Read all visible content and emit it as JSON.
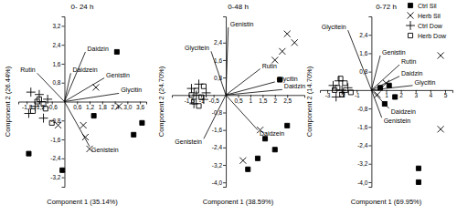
{
  "chart_data": [
    {
      "type": "scatter",
      "title": "0- 24 h",
      "x_label": "Component 1 (35.14%)",
      "y_label": "Component 2 (26.44%)",
      "xlim": [
        -2.2,
        3.9
      ],
      "ylim": [
        -3.6,
        3.6
      ],
      "xticks": [
        {
          "value": -1.8,
          "label": "-1,8"
        },
        {
          "value": -1.2,
          "label": "-1,2"
        },
        {
          "value": -0.6,
          "label": "-0,6"
        },
        {
          "value": 0.6,
          "label": "0,6"
        },
        {
          "value": 1.2,
          "label": "1,2"
        },
        {
          "value": 1.8,
          "label": "1,8"
        },
        {
          "value": 2.4,
          "label": "2,4"
        },
        {
          "value": 3.0,
          "label": "3,0"
        },
        {
          "value": 3.6,
          "label": "3,6"
        }
      ],
      "yticks": [
        {
          "value": 3.2,
          "label": "3,2"
        },
        {
          "value": 2.4,
          "label": "2,4"
        },
        {
          "value": 1.6,
          "label": "1,6"
        },
        {
          "value": 0.8,
          "label": "0,8"
        },
        {
          "value": -0.8,
          "label": "-0,8"
        },
        {
          "value": -1.6,
          "label": "-1,6"
        },
        {
          "value": -2.4,
          "label": "-2,4"
        },
        {
          "value": -3.2,
          "label": "-3,2"
        }
      ],
      "series": [
        {
          "name": "Ctrl Sil",
          "color": "#000000",
          "marker": "square",
          "x": [
            2.5,
            3.7,
            3.3,
            -0.1,
            -1.7,
            1.4
          ],
          "values": [
            2.1,
            -0.9,
            -1.4,
            -2.9,
            -2.2,
            -0.6
          ]
        },
        {
          "name": "Herb Sil",
          "color": "#000000",
          "marker": "x",
          "x": [
            1.5,
            1.0,
            1.2,
            -0.3,
            0.9,
            2.6
          ],
          "values": [
            0.6,
            -1.5,
            -2.0,
            -1.0,
            -1.0,
            -0.2
          ]
        },
        {
          "name": "Ctrl Dow",
          "color": "#000000",
          "marker": "plus",
          "x": [
            -1.6,
            -1.2,
            -1.4,
            -0.8,
            -1.0,
            -1.7
          ],
          "values": [
            0.4,
            0.3,
            -0.2,
            0.1,
            -0.7,
            -0.5
          ]
        },
        {
          "name": "Herb Dow",
          "color": "#000000",
          "marker": "square-open",
          "x": [
            -1.3,
            -1.0,
            -1.5,
            -0.9,
            -1.2,
            -0.6
          ],
          "values": [
            0.0,
            -0.1,
            -0.4,
            -0.3,
            0.1,
            -0.9
          ]
        }
      ],
      "vectors": [
        {
          "name": "Rutin",
          "x": -1.3,
          "y": 1.2
        },
        {
          "name": "Daidzin",
          "x": 1.0,
          "y": 2.1
        },
        {
          "name": "Daidzein",
          "x": 0.3,
          "y": 1.2
        },
        {
          "name": "Genistin",
          "x": 1.9,
          "y": 1.0
        },
        {
          "name": "Glycitin",
          "x": 2.6,
          "y": 0.35
        },
        {
          "name": "Genistein",
          "x": 1.2,
          "y": -1.9
        }
      ]
    },
    {
      "type": "scatter",
      "title": "0-48 h",
      "x_label": "Component 1 (38.59%)",
      "y_label": "Component 2 (24.70%)",
      "xlim": [
        -2.2,
        3.2
      ],
      "ylim": [
        -4.2,
        3.6
      ],
      "xticks": [
        {
          "value": -1.5,
          "label": "-1,5"
        },
        -1,
        {
          "value": -0.5,
          "label": "-0,5"
        },
        {
          "value": 0.5,
          "label": "0,5"
        },
        1,
        {
          "value": 1.5,
          "label": "1,5"
        },
        2,
        {
          "value": 2.5,
          "label": "2,5"
        }
      ],
      "yticks": [
        {
          "value": 2.4,
          "label": "2,4"
        },
        {
          "value": 1.6,
          "label": "1,6"
        },
        {
          "value": 0.8,
          "label": "0,8"
        },
        {
          "value": -0.8,
          "label": "-0,8"
        },
        {
          "value": -1.6,
          "label": "-1,6"
        },
        {
          "value": -2.4,
          "label": "-2,4"
        },
        {
          "value": -3.2,
          "label": "-3,2"
        },
        {
          "value": -4.0,
          "label": "-4,0"
        }
      ],
      "series": [
        {
          "name": "Ctrl Sil",
          "color": "#000000",
          "marker": "square",
          "x": [
            2.2,
            1.6,
            2.0,
            1.3,
            0.9,
            2.5
          ],
          "values": [
            0.7,
            -2.0,
            -2.5,
            -2.9,
            -3.4,
            -1.4
          ]
        },
        {
          "name": "Herb Sil",
          "color": "#000000",
          "marker": "x",
          "x": [
            2.3,
            2.8,
            2.5,
            2.0,
            1.4,
            0.7
          ],
          "values": [
            2.0,
            2.4,
            2.8,
            1.6,
            -1.6,
            -3.0
          ]
        },
        {
          "name": "Ctrl Dow",
          "color": "#000000",
          "marker": "plus",
          "x": [
            -1.4,
            -1.1,
            -0.9,
            -1.3,
            -0.8,
            -1.2
          ],
          "values": [
            0.3,
            0.5,
            -0.2,
            -0.4,
            0.1,
            0.0
          ]
        },
        {
          "name": "Herb Dow",
          "color": "#000000",
          "marker": "square-open",
          "x": [
            -1.2,
            -1.0,
            -1.4,
            -0.9,
            -1.1,
            -1.3
          ],
          "values": [
            0.2,
            -0.1,
            0.0,
            0.4,
            -0.5,
            -0.3
          ]
        }
      ],
      "vectors": [
        {
          "name": "Genistin",
          "x": 0.1,
          "y": 3.1
        },
        {
          "name": "Glycitein",
          "x": -0.6,
          "y": 2.0
        },
        {
          "name": "Rutin",
          "x": 1.4,
          "y": 1.2
        },
        {
          "name": "Glycitin",
          "x": 2.0,
          "y": 0.6
        },
        {
          "name": "Daidzin",
          "x": 2.3,
          "y": 0.25
        },
        {
          "name": "Daidzein",
          "x": 1.3,
          "y": -1.6
        },
        {
          "name": "Genistein",
          "x": -0.9,
          "y": -2.0
        }
      ]
    },
    {
      "type": "scatter",
      "title": "0-72 h",
      "x_label": "Component 1 (69.95%)",
      "y_label": "Component 2 (14.70%)",
      "xlim": [
        -3.5,
        5.5
      ],
      "ylim": [
        -4.2,
        3.2
      ],
      "legend": "top-right",
      "xticks": [
        -3,
        -2,
        -1,
        1,
        2,
        3,
        4,
        5
      ],
      "yticks": [
        {
          "value": 2.4,
          "label": "2,4"
        },
        {
          "value": 1.6,
          "label": "1,6"
        },
        {
          "value": 0.8,
          "label": "0,8"
        },
        {
          "value": -0.8,
          "label": "-0,8"
        },
        {
          "value": -1.6,
          "label": "-1,6"
        },
        {
          "value": -2.4,
          "label": "-2,4"
        },
        {
          "value": -3.2,
          "label": "-3,2"
        },
        {
          "value": -4.0,
          "label": "-4,0"
        }
      ],
      "series": [
        {
          "name": "Ctrl Sil",
          "color": "#000000",
          "marker": "square",
          "x": [
            3.2,
            3.2,
            0.6,
            1.2,
            1.6,
            0.9
          ],
          "values": [
            -3.4,
            -4.0,
            0.1,
            0.2,
            -0.3,
            -0.6
          ]
        },
        {
          "name": "Herb Sil",
          "color": "#000000",
          "marker": "x",
          "x": [
            4.7,
            4.7,
            0.4,
            1.0
          ],
          "values": [
            1.5,
            -1.7,
            -0.2,
            0.3
          ]
        },
        {
          "name": "Ctrl Dow",
          "color": "#000000",
          "marker": "plus",
          "x": [
            -2.6,
            -2.2,
            -1.9,
            -2.4,
            -1.6,
            -2.0
          ],
          "values": [
            0.2,
            0.4,
            -0.1,
            -0.3,
            0.1,
            0.0
          ]
        },
        {
          "name": "Herb Dow",
          "color": "#000000",
          "marker": "square-open",
          "x": [
            -2.3,
            -2.0,
            -2.5,
            -1.8,
            -1.4,
            -2.1
          ],
          "values": [
            0.1,
            -0.2,
            0.0,
            0.3,
            -0.1,
            0.5
          ]
        }
      ],
      "vectors": [
        {
          "name": "Glycitein",
          "x": -1.6,
          "y": 2.6
        },
        {
          "name": "Genistin",
          "x": 0.6,
          "y": 1.5
        },
        {
          "name": "Rutin",
          "x": 1.9,
          "y": 1.1
        },
        {
          "name": "Daidzin",
          "x": 1.9,
          "y": 0.6
        },
        {
          "name": "Glycitin",
          "x": 2.8,
          "y": 0.2
        },
        {
          "name": "Daidzein",
          "x": 1.2,
          "y": -0.8
        },
        {
          "name": "Genistein",
          "x": 0.7,
          "y": -1.2
        }
      ]
    }
  ]
}
